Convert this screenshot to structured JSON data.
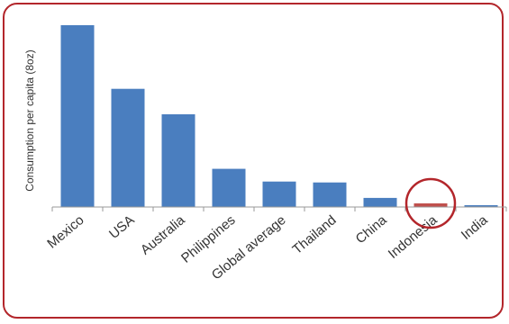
{
  "chart_data": {
    "type": "bar",
    "ylabel": "Consumption per capita (8oz)",
    "xlabel": "",
    "title": "",
    "categories": [
      "Mexico",
      "USA",
      "Australia",
      "Philippines",
      "Global average",
      "Thailand",
      "China",
      "Indonesia",
      "India"
    ],
    "values": [
      100,
      65,
      51,
      21,
      14,
      13.5,
      5,
      2,
      1
    ],
    "ylim": [
      0,
      100
    ],
    "grid": false,
    "legend": "none",
    "highlight_category": "Indonesia",
    "colors": {
      "bar": "#4a7ebf",
      "highlight_bar": "#c0504d",
      "highlight_circle": "#b3262b",
      "frame": "#b3262b",
      "axis": "#999999"
    }
  }
}
